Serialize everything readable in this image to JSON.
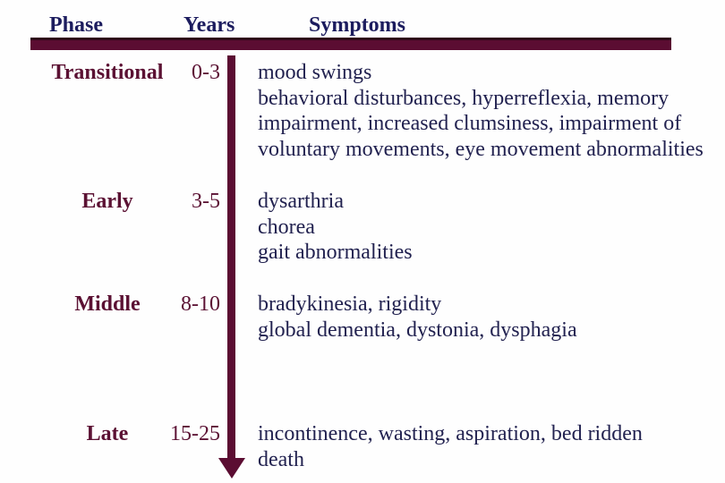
{
  "slide": {
    "columns": {
      "phase": "Phase",
      "years": "Years",
      "symptoms": "Symptoms"
    },
    "rows": [
      {
        "phase": "Transitional",
        "years": "0-3",
        "symptoms": "mood swings\nbehavioral disturbances, hyperreflexia, memory\nimpairment, increased clumsiness, impairment of\nvoluntary movements, eye movement abnormalities"
      },
      {
        "phase": "Early",
        "years": "3-5",
        "symptoms": "dysarthria\nchorea\ngait abnormalities"
      },
      {
        "phase": "Middle",
        "years": "8-10",
        "symptoms": "bradykinesia, rigidity\nglobal dementia, dystonia, dysphagia"
      },
      {
        "phase": "Late",
        "years": "15-25",
        "symptoms": "incontinence, wasting, aspiration, bed ridden\ndeath"
      }
    ],
    "colors": {
      "accent_maroon": "#5b0d32",
      "phase_text_maroon": "#5b1133",
      "header_navy": "#1c1c5e",
      "body_navy": "#222250",
      "background": "#ffffff"
    }
  }
}
